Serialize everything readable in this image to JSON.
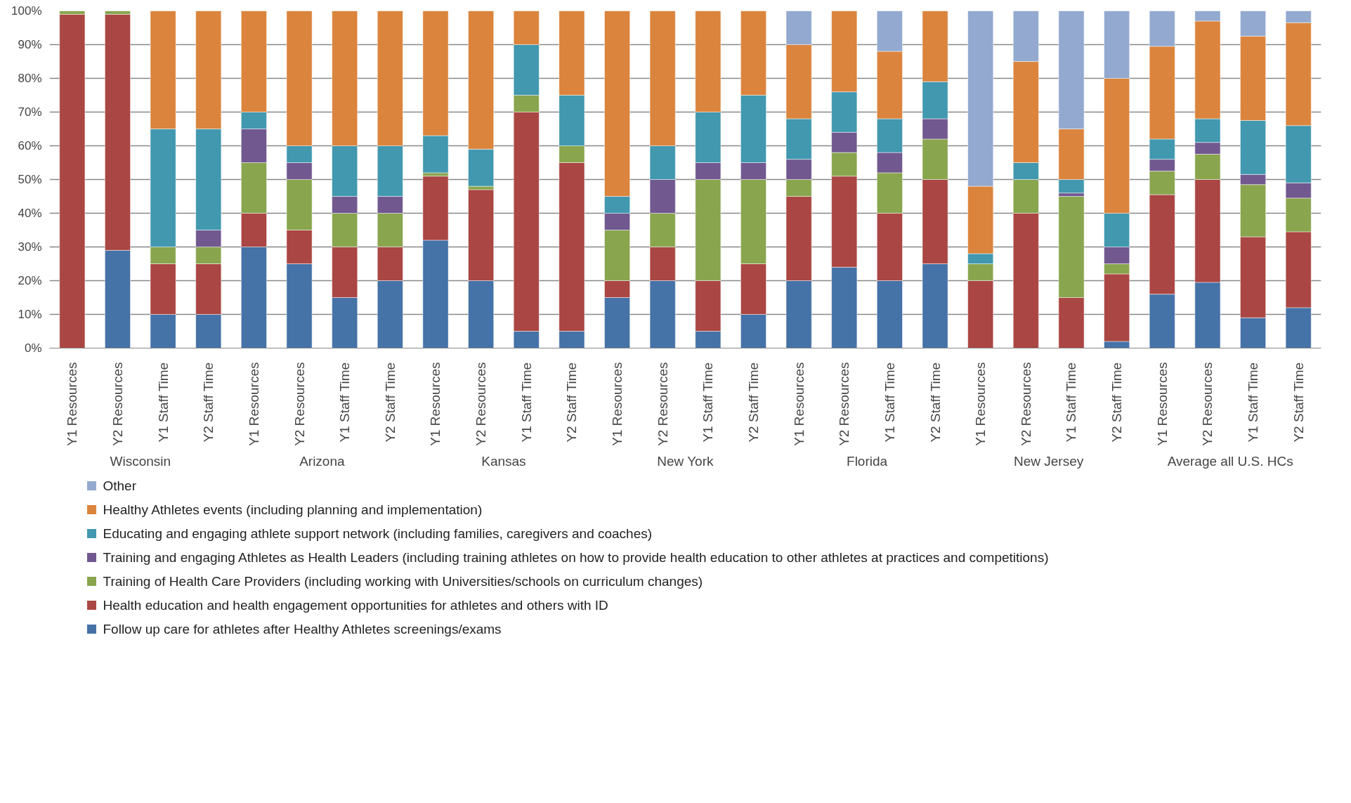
{
  "chart_data": {
    "type": "bar",
    "stacked": true,
    "categories": [
      "Y1 Resources",
      "Y2 Resources",
      "Y1 Staff Time",
      "Y2 Staff Time",
      "Y1 Resources",
      "Y2 Resources",
      "Y1 Staff Time",
      "Y2 Staff Time",
      "Y1 Resources",
      "Y2 Resources",
      "Y1 Staff Time",
      "Y2 Staff Time",
      "Y1 Resources",
      "Y2 Resources",
      "Y1 Staff Time",
      "Y2 Staff Time",
      "Y1 Resources",
      "Y2 Resources",
      "Y1 Staff Time",
      "Y2 Staff Time",
      "Y1 Resources",
      "Y2 Resources",
      "Y1 Staff Time",
      "Y2 Staff Time",
      "Y1 Resources",
      "Y2 Resources",
      "Y1 Staff Time",
      "Y2 Staff Time"
    ],
    "annotations": [
      "Wisconsin",
      "Arizona",
      "Kansas",
      "New York",
      "Florida",
      "New Jersey",
      "Average all U.S. HCs"
    ],
    "series": [
      {
        "name": "Follow up care for athletes after Healthy Athletes screenings/exams",
        "color": "#4572a7",
        "values": [
          0,
          29,
          10,
          10,
          30,
          25,
          15,
          20,
          32,
          20,
          5,
          5,
          15,
          20,
          5,
          10,
          20,
          24,
          20,
          25,
          0,
          0,
          0,
          2,
          16,
          19.5,
          9,
          12
        ]
      },
      {
        "name": "Health education and health engagement opportunities for athletes and others with ID",
        "color": "#aa4643",
        "values": [
          99,
          70,
          15,
          15,
          10,
          10,
          15,
          10,
          19,
          27,
          65,
          50,
          5,
          10,
          15,
          15,
          25,
          27,
          20,
          25,
          20,
          40,
          15,
          20,
          29.5,
          30.5,
          24,
          22.5
        ]
      },
      {
        "name": "Training of Health Care Providers (including working with Universities/schools on curriculum changes)",
        "color": "#89a54e",
        "values": [
          1,
          1,
          5,
          5,
          15,
          15,
          10,
          10,
          1,
          1,
          5,
          5,
          15,
          10,
          30,
          25,
          5,
          7,
          12,
          12,
          5,
          10,
          30,
          3,
          7,
          7.5,
          15.5,
          10
        ]
      },
      {
        "name": "Training and engaging Athletes as Health Leaders (including training athletes on how to provide health education to other athletes at practices and competitions)",
        "color": "#71588f",
        "values": [
          0,
          0,
          0,
          5,
          10,
          5,
          5,
          5,
          0,
          0,
          0,
          0,
          5,
          10,
          5,
          5,
          6,
          6,
          6,
          6,
          0,
          0,
          1,
          5,
          3.5,
          3.5,
          3,
          4.5
        ]
      },
      {
        "name": "Educating and engaging athlete support network (including families, caregivers and coaches)",
        "color": "#4198af",
        "values": [
          0,
          0,
          35,
          30,
          5,
          5,
          15,
          15,
          11,
          11,
          15,
          15,
          5,
          10,
          15,
          20,
          12,
          12,
          10,
          11,
          3,
          5,
          4,
          10,
          6,
          7,
          16,
          17
        ]
      },
      {
        "name": "Healthy Athletes events (including planning and implementation)",
        "color": "#db843d",
        "values": [
          0,
          0,
          35,
          35,
          30,
          40,
          40,
          40,
          37,
          41,
          10,
          25,
          55,
          40,
          30,
          25,
          22,
          24,
          20,
          21,
          20,
          30,
          15,
          40,
          27.5,
          29,
          25,
          30.5
        ]
      },
      {
        "name": "Other",
        "color": "#93a9cf",
        "values": [
          0,
          0,
          0,
          0,
          0,
          0,
          0,
          0,
          0,
          0,
          0,
          0,
          0,
          0,
          0,
          0,
          10,
          0,
          12,
          0,
          52,
          15,
          35,
          20,
          10.5,
          3,
          7.5,
          3.5
        ]
      }
    ],
    "ylim": [
      0,
      100
    ],
    "yticks": [
      {
        "value": 0,
        "label": "0%"
      },
      {
        "value": 10,
        "label": "10%"
      },
      {
        "value": 20,
        "label": "20%"
      },
      {
        "value": 30,
        "label": "30%"
      },
      {
        "value": 40,
        "label": "40%"
      },
      {
        "value": 50,
        "label": "50%"
      },
      {
        "value": 60,
        "label": "60%"
      },
      {
        "value": 70,
        "label": "70%"
      },
      {
        "value": 80,
        "label": "80%"
      },
      {
        "value": 90,
        "label": "90%"
      },
      {
        "value": 100,
        "label": "100%"
      }
    ],
    "grid": "y",
    "legend": "bottom"
  }
}
